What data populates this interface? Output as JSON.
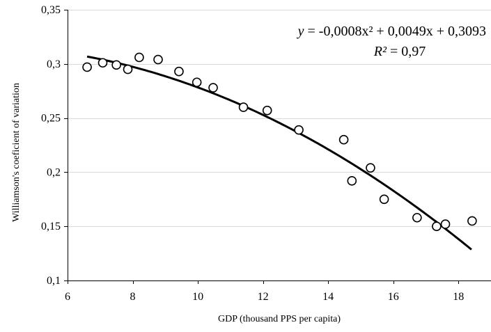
{
  "chart_data": {
    "type": "scatter",
    "title": "",
    "xlabel": "GDP (thousand PPS per capita)",
    "ylabel": "Williamson's coeficient of variation",
    "xlim": [
      6,
      19
    ],
    "ylim": [
      0.1,
      0.35
    ],
    "x_ticks": [
      6,
      8,
      10,
      12,
      14,
      16,
      18
    ],
    "y_ticks": [
      0.1,
      0.15,
      0.2,
      0.25,
      0.3,
      0.35
    ],
    "x_tick_labels": [
      "6",
      "8",
      "10",
      "12",
      "14",
      "16",
      "18"
    ],
    "y_tick_labels": [
      "0,1",
      "0,15",
      "0,2",
      "0,25",
      "0,3",
      "0,35"
    ],
    "grid": {
      "horizontal": true,
      "vertical": false
    },
    "series": [
      {
        "marker": "open-circle",
        "points": [
          {
            "x": 6.6,
            "y": 0.297
          },
          {
            "x": 7.08,
            "y": 0.301
          },
          {
            "x": 7.5,
            "y": 0.299
          },
          {
            "x": 7.85,
            "y": 0.295
          },
          {
            "x": 8.2,
            "y": 0.306
          },
          {
            "x": 8.78,
            "y": 0.304
          },
          {
            "x": 9.42,
            "y": 0.293
          },
          {
            "x": 9.97,
            "y": 0.283
          },
          {
            "x": 10.47,
            "y": 0.278
          },
          {
            "x": 11.4,
            "y": 0.26
          },
          {
            "x": 12.13,
            "y": 0.257
          },
          {
            "x": 13.1,
            "y": 0.239
          },
          {
            "x": 14.48,
            "y": 0.23
          },
          {
            "x": 14.73,
            "y": 0.192
          },
          {
            "x": 15.3,
            "y": 0.204
          },
          {
            "x": 15.72,
            "y": 0.175
          },
          {
            "x": 16.73,
            "y": 0.158
          },
          {
            "x": 17.33,
            "y": 0.15
          },
          {
            "x": 17.6,
            "y": 0.152
          },
          {
            "x": 18.42,
            "y": 0.155
          }
        ]
      }
    ],
    "trendline": {
      "type": "polynomial-2",
      "coefficients": {
        "a": -0.0008,
        "b": 0.0049,
        "c": 0.3093
      },
      "x_range": [
        6.6,
        18.4
      ]
    },
    "annotation": {
      "equation": {
        "prefix": "y",
        "rest": " = -0,0008x² + 0,0049x + 0,3093"
      },
      "r2": {
        "prefix": "R²",
        "rest": " = 0,97"
      }
    },
    "colors": {
      "marker": "#000000",
      "trendline": "#000000",
      "grid": "#d9d9d9",
      "axis": "#000000"
    }
  }
}
